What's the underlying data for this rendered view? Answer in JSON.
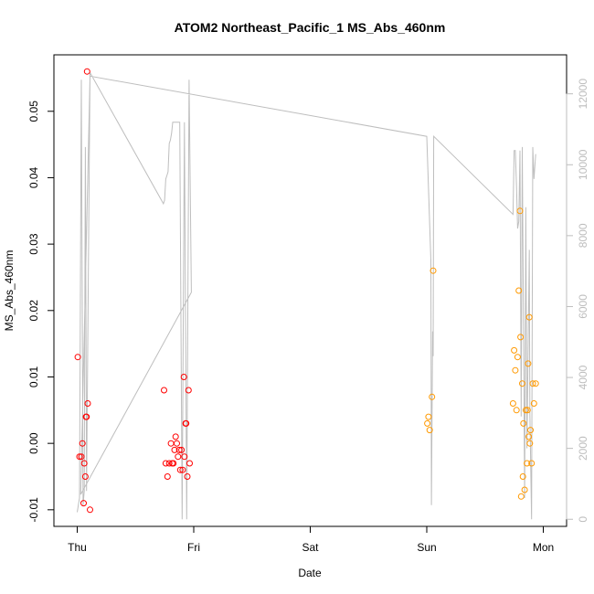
{
  "chart_data": {
    "type": "scatter",
    "title": "ATOM2 Northeast_Pacific_1 MS_Abs_460nm",
    "xlabel": "Date",
    "ylabel": "MS_Abs_460nm",
    "x_ticks": [
      {
        "value": 0,
        "label": "Thu"
      },
      {
        "value": 1,
        "label": "Fri"
      },
      {
        "value": 2,
        "label": "Sat"
      },
      {
        "value": 3,
        "label": "Sun"
      },
      {
        "value": 4,
        "label": "Mon"
      }
    ],
    "xlim": [
      -0.2,
      4.2
    ],
    "ylim": [
      -0.0125,
      0.0585
    ],
    "y_ticks": [
      {
        "value": -0.01,
        "label": "-0.01"
      },
      {
        "value": 0.0,
        "label": "0.00"
      },
      {
        "value": 0.01,
        "label": "0.01"
      },
      {
        "value": 0.02,
        "label": "0.02"
      },
      {
        "value": 0.03,
        "label": "0.03"
      },
      {
        "value": 0.04,
        "label": "0.04"
      },
      {
        "value": 0.05,
        "label": "0.05"
      }
    ],
    "y2lim": [
      -200,
      13100
    ],
    "y2_ticks": [
      {
        "value": 0,
        "label": "0"
      },
      {
        "value": 2000,
        "label": "2000"
      },
      {
        "value": 4000,
        "label": "4000"
      },
      {
        "value": 6000,
        "label": "6000"
      },
      {
        "value": 8000,
        "label": "8000"
      },
      {
        "value": 10000,
        "label": "10000"
      },
      {
        "value": 12000,
        "label": "12000"
      }
    ],
    "colors": {
      "red": "#ff0000",
      "orange": "#ff9900",
      "line": "#bebebe"
    },
    "points": [
      {
        "x": 0.005,
        "y": 0.013,
        "c": "red"
      },
      {
        "x": 0.02,
        "y": -0.002,
        "c": "red"
      },
      {
        "x": 0.035,
        "y": -0.002,
        "c": "red"
      },
      {
        "x": 0.045,
        "y": 0.0,
        "c": "red"
      },
      {
        "x": 0.055,
        "y": -0.009,
        "c": "red"
      },
      {
        "x": 0.06,
        "y": -0.003,
        "c": "red"
      },
      {
        "x": 0.07,
        "y": -0.005,
        "c": "red"
      },
      {
        "x": 0.075,
        "y": 0.004,
        "c": "red"
      },
      {
        "x": 0.08,
        "y": 0.004,
        "c": "red"
      },
      {
        "x": 0.085,
        "y": 0.056,
        "c": "red"
      },
      {
        "x": 0.09,
        "y": 0.006,
        "c": "red"
      },
      {
        "x": 0.11,
        "y": -0.01,
        "c": "red"
      },
      {
        "x": 0.745,
        "y": 0.008,
        "c": "red"
      },
      {
        "x": 0.76,
        "y": -0.003,
        "c": "red"
      },
      {
        "x": 0.775,
        "y": -0.005,
        "c": "red"
      },
      {
        "x": 0.79,
        "y": -0.003,
        "c": "red"
      },
      {
        "x": 0.805,
        "y": 0.0,
        "c": "red"
      },
      {
        "x": 0.815,
        "y": -0.003,
        "c": "red"
      },
      {
        "x": 0.825,
        "y": -0.003,
        "c": "red"
      },
      {
        "x": 0.835,
        "y": -0.001,
        "c": "red"
      },
      {
        "x": 0.845,
        "y": 0.001,
        "c": "red"
      },
      {
        "x": 0.855,
        "y": 0.0,
        "c": "red"
      },
      {
        "x": 0.865,
        "y": -0.002,
        "c": "red"
      },
      {
        "x": 0.875,
        "y": -0.001,
        "c": "red"
      },
      {
        "x": 0.885,
        "y": -0.004,
        "c": "red"
      },
      {
        "x": 0.895,
        "y": -0.001,
        "c": "red"
      },
      {
        "x": 0.905,
        "y": -0.004,
        "c": "red"
      },
      {
        "x": 0.915,
        "y": 0.01,
        "c": "red"
      },
      {
        "x": 0.92,
        "y": -0.002,
        "c": "red"
      },
      {
        "x": 0.93,
        "y": 0.003,
        "c": "red"
      },
      {
        "x": 0.935,
        "y": 0.003,
        "c": "red"
      },
      {
        "x": 0.945,
        "y": -0.005,
        "c": "red"
      },
      {
        "x": 0.955,
        "y": 0.008,
        "c": "red"
      },
      {
        "x": 0.965,
        "y": -0.003,
        "c": "red"
      },
      {
        "x": 3.005,
        "y": 0.003,
        "c": "orange"
      },
      {
        "x": 3.015,
        "y": 0.004,
        "c": "orange"
      },
      {
        "x": 3.025,
        "y": 0.002,
        "c": "orange"
      },
      {
        "x": 3.045,
        "y": 0.007,
        "c": "orange"
      },
      {
        "x": 3.055,
        "y": 0.026,
        "c": "orange"
      },
      {
        "x": 3.74,
        "y": 0.006,
        "c": "orange"
      },
      {
        "x": 3.75,
        "y": 0.014,
        "c": "orange"
      },
      {
        "x": 3.76,
        "y": 0.011,
        "c": "orange"
      },
      {
        "x": 3.77,
        "y": 0.005,
        "c": "orange"
      },
      {
        "x": 3.78,
        "y": 0.013,
        "c": "orange"
      },
      {
        "x": 3.79,
        "y": 0.023,
        "c": "orange"
      },
      {
        "x": 3.8,
        "y": 0.035,
        "c": "orange"
      },
      {
        "x": 3.805,
        "y": 0.016,
        "c": "orange"
      },
      {
        "x": 3.81,
        "y": -0.008,
        "c": "orange"
      },
      {
        "x": 3.82,
        "y": 0.009,
        "c": "orange"
      },
      {
        "x": 3.825,
        "y": -0.005,
        "c": "orange"
      },
      {
        "x": 3.83,
        "y": 0.003,
        "c": "orange"
      },
      {
        "x": 3.84,
        "y": -0.007,
        "c": "orange"
      },
      {
        "x": 3.85,
        "y": 0.005,
        "c": "orange"
      },
      {
        "x": 3.86,
        "y": -0.003,
        "c": "orange"
      },
      {
        "x": 3.865,
        "y": 0.005,
        "c": "orange"
      },
      {
        "x": 3.87,
        "y": 0.012,
        "c": "orange"
      },
      {
        "x": 3.875,
        "y": 0.001,
        "c": "orange"
      },
      {
        "x": 3.88,
        "y": 0.019,
        "c": "orange"
      },
      {
        "x": 3.885,
        "y": 0.0,
        "c": "orange"
      },
      {
        "x": 3.89,
        "y": 0.002,
        "c": "orange"
      },
      {
        "x": 3.9,
        "y": -0.003,
        "c": "orange"
      },
      {
        "x": 3.91,
        "y": 0.009,
        "c": "orange"
      },
      {
        "x": 3.92,
        "y": 0.006,
        "c": "orange"
      },
      {
        "x": 3.935,
        "y": 0.009,
        "c": "orange"
      }
    ],
    "depth_line": [
      [
        0.0,
        200
      ],
      [
        0.02,
        600
      ],
      [
        0.035,
        12400
      ],
      [
        0.05,
        400
      ],
      [
        0.06,
        800
      ],
      [
        0.07,
        10500
      ],
      [
        0.08,
        800
      ],
      [
        0.11,
        12600
      ],
      [
        0.74,
        8900
      ],
      [
        0.75,
        9000
      ],
      [
        0.76,
        9600
      ],
      [
        0.77,
        9700
      ],
      [
        0.78,
        9800
      ],
      [
        0.79,
        10600
      ],
      [
        0.8,
        10700
      ],
      [
        0.81,
        10900
      ],
      [
        0.82,
        11200
      ],
      [
        0.84,
        11200
      ],
      [
        0.86,
        11200
      ],
      [
        0.88,
        11200
      ],
      [
        0.9,
        0
      ],
      [
        0.92,
        11200
      ],
      [
        0.94,
        0
      ],
      [
        0.96,
        12400
      ],
      [
        0.98,
        6400
      ],
      [
        0.03,
        700
      ],
      [
        0.11,
        12500
      ],
      [
        3.0,
        10800
      ],
      [
        3.035,
        7300
      ],
      [
        3.04,
        400
      ],
      [
        3.05,
        5300
      ],
      [
        3.055,
        4600
      ],
      [
        3.06,
        10800
      ],
      [
        3.74,
        8600
      ],
      [
        3.75,
        10400
      ],
      [
        3.76,
        10400
      ],
      [
        3.77,
        9400
      ],
      [
        3.78,
        8200
      ],
      [
        3.79,
        8400
      ],
      [
        3.8,
        10400
      ],
      [
        3.81,
        2900
      ],
      [
        3.82,
        10500
      ],
      [
        3.84,
        600
      ],
      [
        3.85,
        8800
      ],
      [
        3.86,
        2000
      ],
      [
        3.88,
        7600
      ],
      [
        3.885,
        3000
      ],
      [
        3.9,
        0
      ],
      [
        3.91,
        10500
      ],
      [
        3.92,
        9600
      ],
      [
        3.935,
        10300
      ]
    ]
  }
}
